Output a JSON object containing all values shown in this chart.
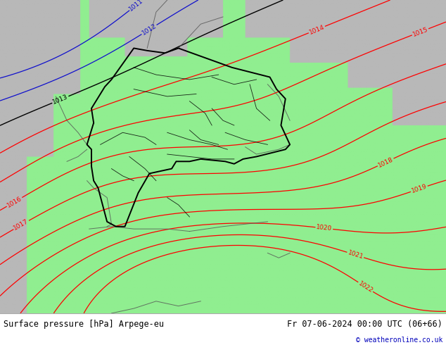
{
  "title_left": "Surface pressure [hPa] Arpege-eu",
  "title_right": "Fr 07-06-2024 00:00 UTC (06+66)",
  "copyright": "© weatheronline.co.uk",
  "bg_land": "#90ee90",
  "bg_ocean": "#c0c0c0",
  "bg_highlight": "#b8e8b8",
  "contour_red": "#ff0000",
  "contour_black": "#000000",
  "contour_blue": "#1010cc",
  "lw_main": 0.9,
  "lw_border": 1.4,
  "label_fontsize": 6.5
}
